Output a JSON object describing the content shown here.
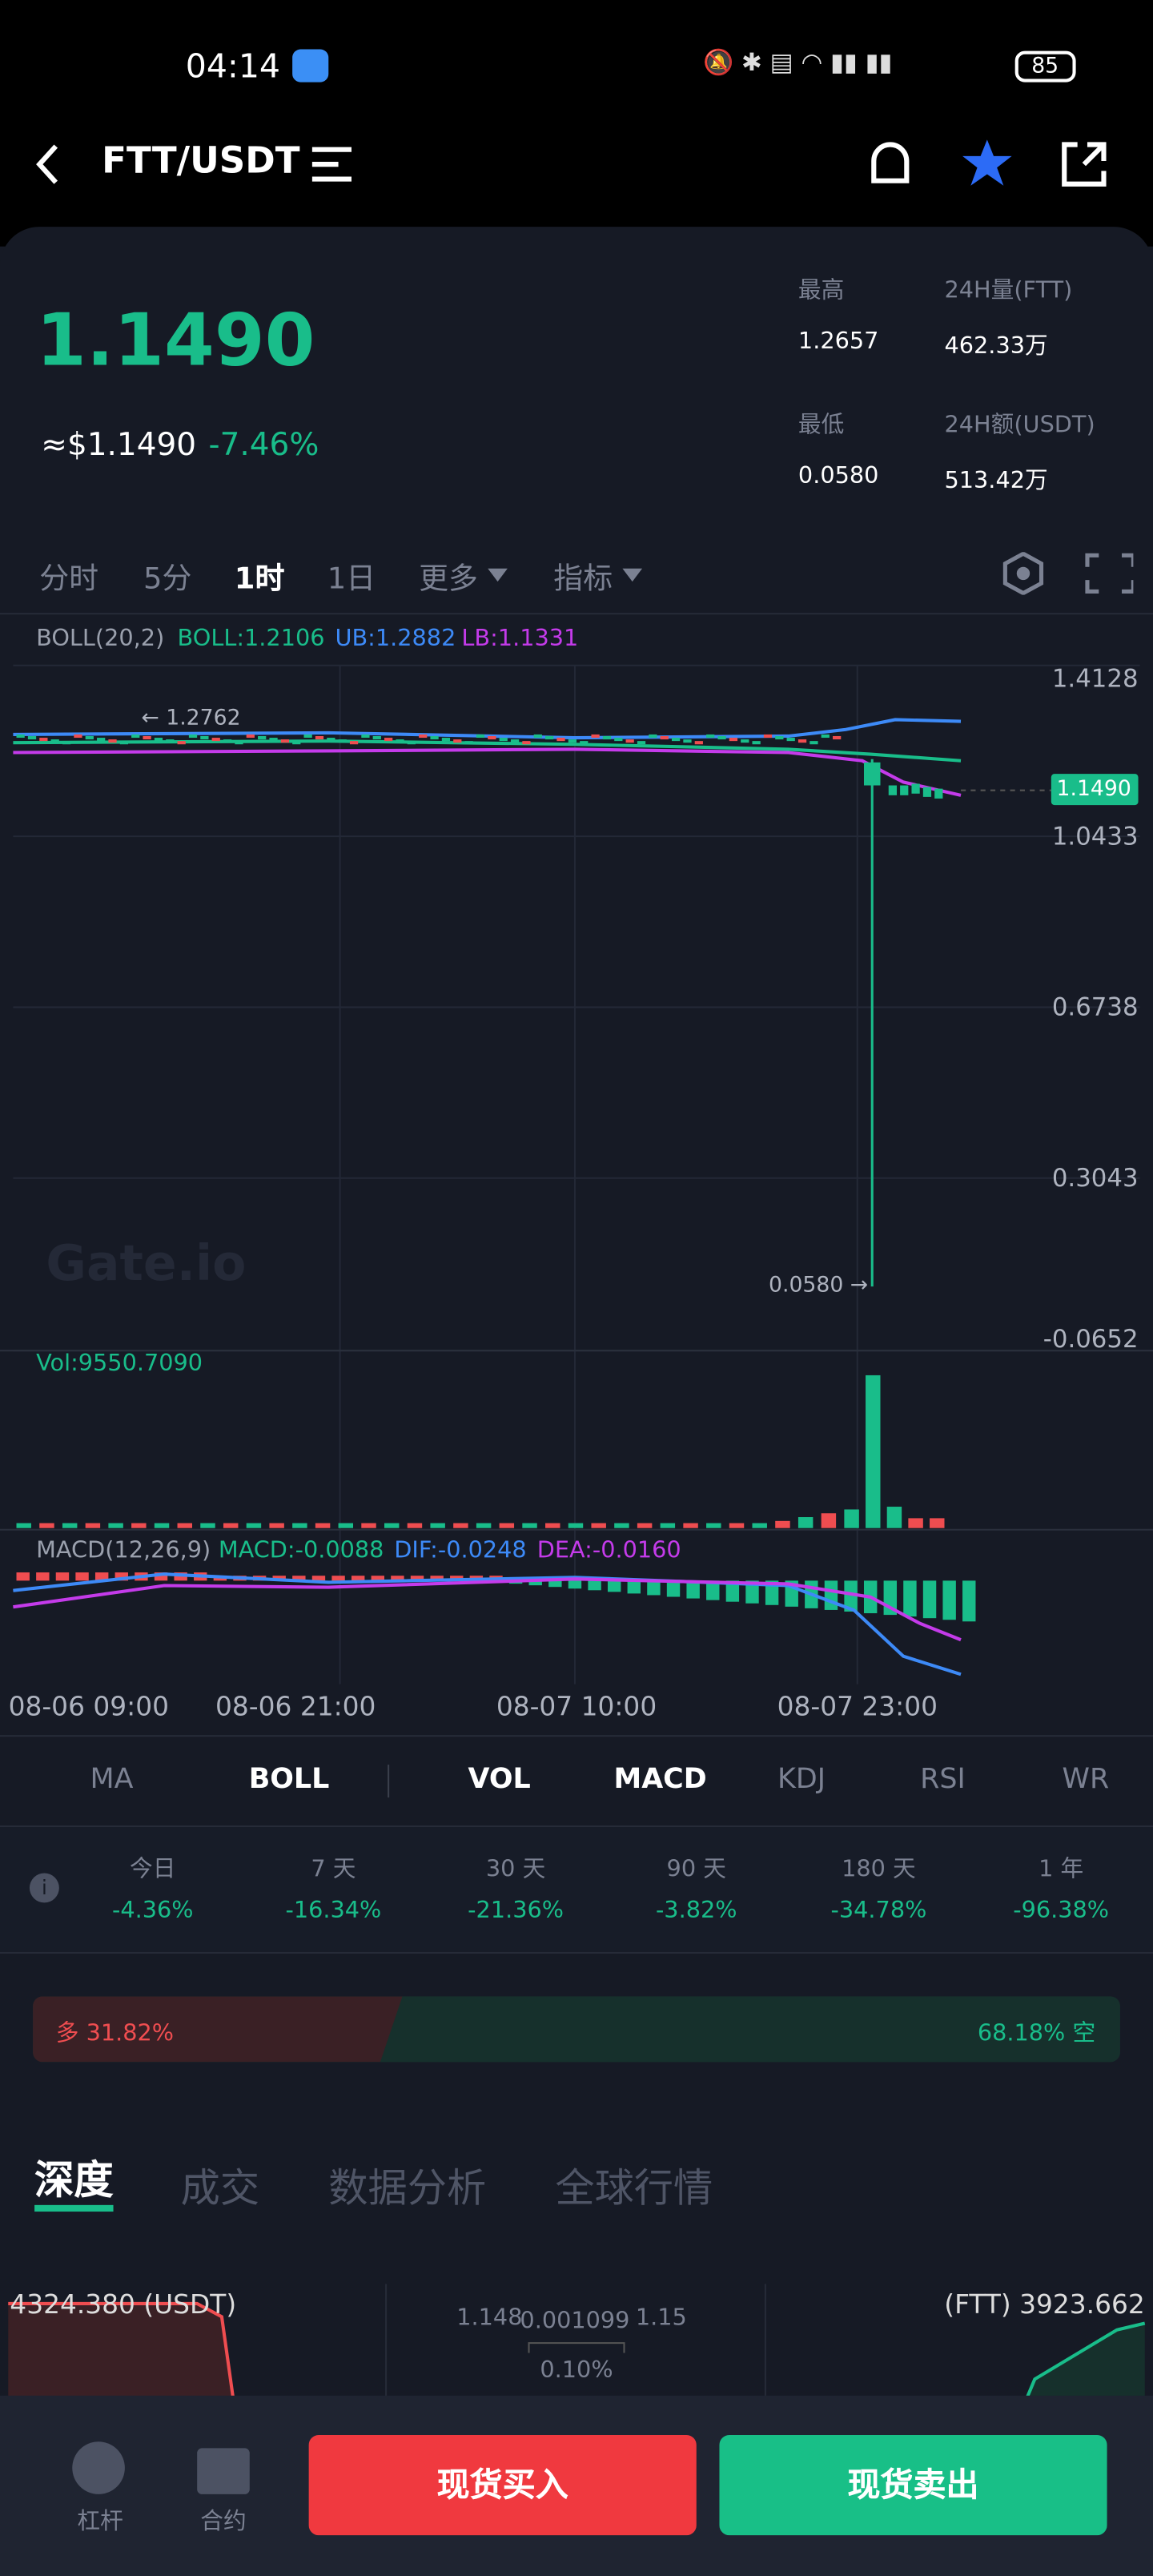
{
  "status_bar": {
    "time": "04:14",
    "battery": "85"
  },
  "header": {
    "pair": "FTT/USDT"
  },
  "price": {
    "last": "1.1490",
    "usd": "≈$1.1490",
    "change": "-7.46%",
    "stats": [
      {
        "label": "最高",
        "value": "1.2657"
      },
      {
        "label": "24H量(FTT)",
        "value": "462.33万"
      },
      {
        "label": "最低",
        "value": "0.0580"
      },
      {
        "label": "24H额(USDT)",
        "value": "513.42万"
      }
    ]
  },
  "intervals": [
    "分时",
    "5分",
    "1时",
    "1日",
    "更多",
    "指标"
  ],
  "chart": {
    "boll": "BOLL(20,2)",
    "boll_values": [
      "BOLL:1.2106",
      "UB:1.2882",
      "LB:1.1331"
    ],
    "price_ticks": [
      "1.4128",
      "1.0433",
      "0.6738",
      "0.3043",
      "-0.0652"
    ],
    "current_price_tag": "1.1490",
    "high_marker": "← 1.2762",
    "low_marker": "0.0580 →",
    "watermark": "Gate.io",
    "vol": "Vol:9550.7090",
    "macd": [
      "MACD(12,26,9)",
      "MACD:-0.0088",
      "DIF:-0.0248",
      "DEA:-0.0160"
    ],
    "time_ticks": [
      "08-06 09:00",
      "08-06 21:00",
      "08-07 10:00",
      "08-07 23:00"
    ]
  },
  "indicator_tabs": [
    "MA",
    "BOLL",
    "VOL",
    "MACD",
    "KDJ",
    "RSI",
    "WR"
  ],
  "performance": [
    {
      "period": "今日",
      "change": "-4.36%"
    },
    {
      "period": "7 天",
      "change": "-16.34%"
    },
    {
      "period": "30 天",
      "change": "-21.36%"
    },
    {
      "period": "90 天",
      "change": "-3.82%"
    },
    {
      "period": "180 天",
      "change": "-34.78%"
    },
    {
      "period": "1 年",
      "change": "-96.38%"
    }
  ],
  "sentiment": {
    "long": "多 31.82%",
    "short": "68.18% 空"
  },
  "tabs": [
    "深度",
    "成交",
    "数据分析",
    "全球行情"
  ],
  "depth": {
    "left": "4324.380 (USDT)",
    "mid_left": "1.148",
    "mid": "0.001099",
    "mid_right": "1.15",
    "spread": "0.10%",
    "right": "(FTT) 3923.662"
  },
  "bottom": {
    "leverage": "杠杆",
    "contract": "合约",
    "buy": "现货买入",
    "sell": "现货卖出"
  }
}
